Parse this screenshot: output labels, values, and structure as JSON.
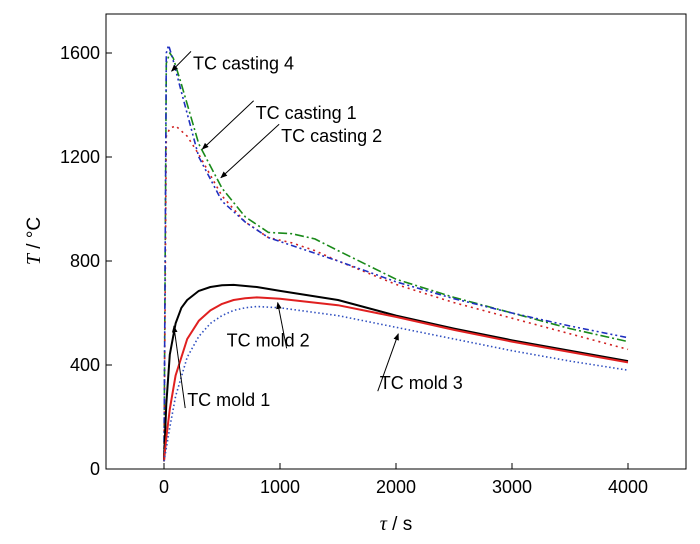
{
  "chart_data": {
    "type": "line",
    "xlabel_symbol": "τ",
    "xlabel_unit": " / s",
    "ylabel_symbol": "T",
    "ylabel_unit": " / °C",
    "xlim": [
      -500,
      4500
    ],
    "ylim": [
      0,
      1750
    ],
    "xticks": [
      0,
      1000,
      2000,
      3000,
      4000
    ],
    "yticks": [
      0,
      400,
      800,
      1200,
      1600
    ],
    "xtick_labels": [
      "0",
      "1000",
      "2000",
      "3000",
      "4000"
    ],
    "ytick_labels": [
      "0",
      "400",
      "800",
      "1200",
      "1600"
    ],
    "grid": false,
    "series": [
      {
        "key": "casting4",
        "color": "#1a8a1a",
        "dash": "9,3,2,3",
        "x": [
          0,
          20,
          50,
          80,
          150,
          300,
          500,
          700,
          900,
          1100,
          1300,
          1500,
          2000,
          2500,
          3000,
          3500,
          4000
        ],
        "y": [
          30,
          1560,
          1600,
          1580,
          1480,
          1250,
          1080,
          970,
          910,
          905,
          885,
          840,
          730,
          660,
          600,
          540,
          490
        ]
      },
      {
        "key": "casting1",
        "color": "#d02020",
        "dash": "2,4",
        "x": [
          0,
          20,
          50,
          100,
          200,
          300,
          500,
          700,
          900,
          1100,
          1300,
          1500,
          2000,
          2500,
          3000,
          3500,
          4000
        ],
        "y": [
          30,
          1280,
          1310,
          1320,
          1280,
          1210,
          1050,
          950,
          890,
          870,
          840,
          800,
          710,
          640,
          580,
          520,
          460
        ]
      },
      {
        "key": "casting2",
        "color": "#2030c0",
        "dash": "6,3,2,3,2,3",
        "x": [
          0,
          20,
          40,
          80,
          150,
          300,
          500,
          700,
          900,
          1100,
          1300,
          1500,
          2000,
          2500,
          3000,
          3500,
          4000
        ],
        "y": [
          30,
          1600,
          1630,
          1570,
          1450,
          1200,
          1030,
          950,
          890,
          860,
          830,
          800,
          720,
          655,
          600,
          550,
          505
        ]
      },
      {
        "key": "mold1",
        "color": "#000000",
        "dash": "",
        "x": [
          0,
          20,
          50,
          100,
          150,
          200,
          300,
          400,
          500,
          600,
          800,
          1000,
          1500,
          2000,
          2500,
          3000,
          3500,
          4000
        ],
        "y": [
          30,
          250,
          440,
          560,
          620,
          650,
          685,
          700,
          707,
          708,
          700,
          685,
          650,
          590,
          540,
          495,
          455,
          415
        ]
      },
      {
        "key": "mold2",
        "color": "#e02020",
        "dash": "",
        "x": [
          0,
          20,
          50,
          100,
          200,
          300,
          400,
          500,
          600,
          700,
          800,
          1000,
          1500,
          2000,
          2500,
          3000,
          3500,
          4000
        ],
        "y": [
          30,
          120,
          230,
          360,
          500,
          570,
          610,
          635,
          650,
          657,
          660,
          655,
          630,
          585,
          535,
          490,
          450,
          410
        ]
      },
      {
        "key": "mold3",
        "color": "#3050c0",
        "dash": "1.5,2.5",
        "x": [
          0,
          20,
          50,
          100,
          200,
          300,
          400,
          500,
          600,
          700,
          800,
          1000,
          1500,
          2000,
          2500,
          3000,
          3500,
          4000
        ],
        "y": [
          30,
          80,
          160,
          280,
          430,
          510,
          560,
          590,
          610,
          620,
          625,
          620,
          590,
          545,
          500,
          455,
          415,
          380
        ]
      }
    ],
    "annotations": [
      {
        "text": "TC casting 4",
        "tx": 250,
        "ty": 1560,
        "ax": 65,
        "ay": 1530
      },
      {
        "text": "TC casting 1",
        "tx": 790,
        "ty": 1370,
        "ax": 330,
        "ay": 1230
      },
      {
        "text": "TC casting 2",
        "tx": 1010,
        "ty": 1280,
        "ax": 490,
        "ay": 1120
      },
      {
        "text": "TC mold 2",
        "tx": 540,
        "ty": 495,
        "ax": 980,
        "ay": 640
      },
      {
        "text": "TC mold 1",
        "tx": 200,
        "ty": 265,
        "ax": 85,
        "ay": 550
      },
      {
        "text": "TC mold 3",
        "tx": 1860,
        "ty": 330,
        "ax": 2020,
        "ay": 520
      }
    ]
  }
}
